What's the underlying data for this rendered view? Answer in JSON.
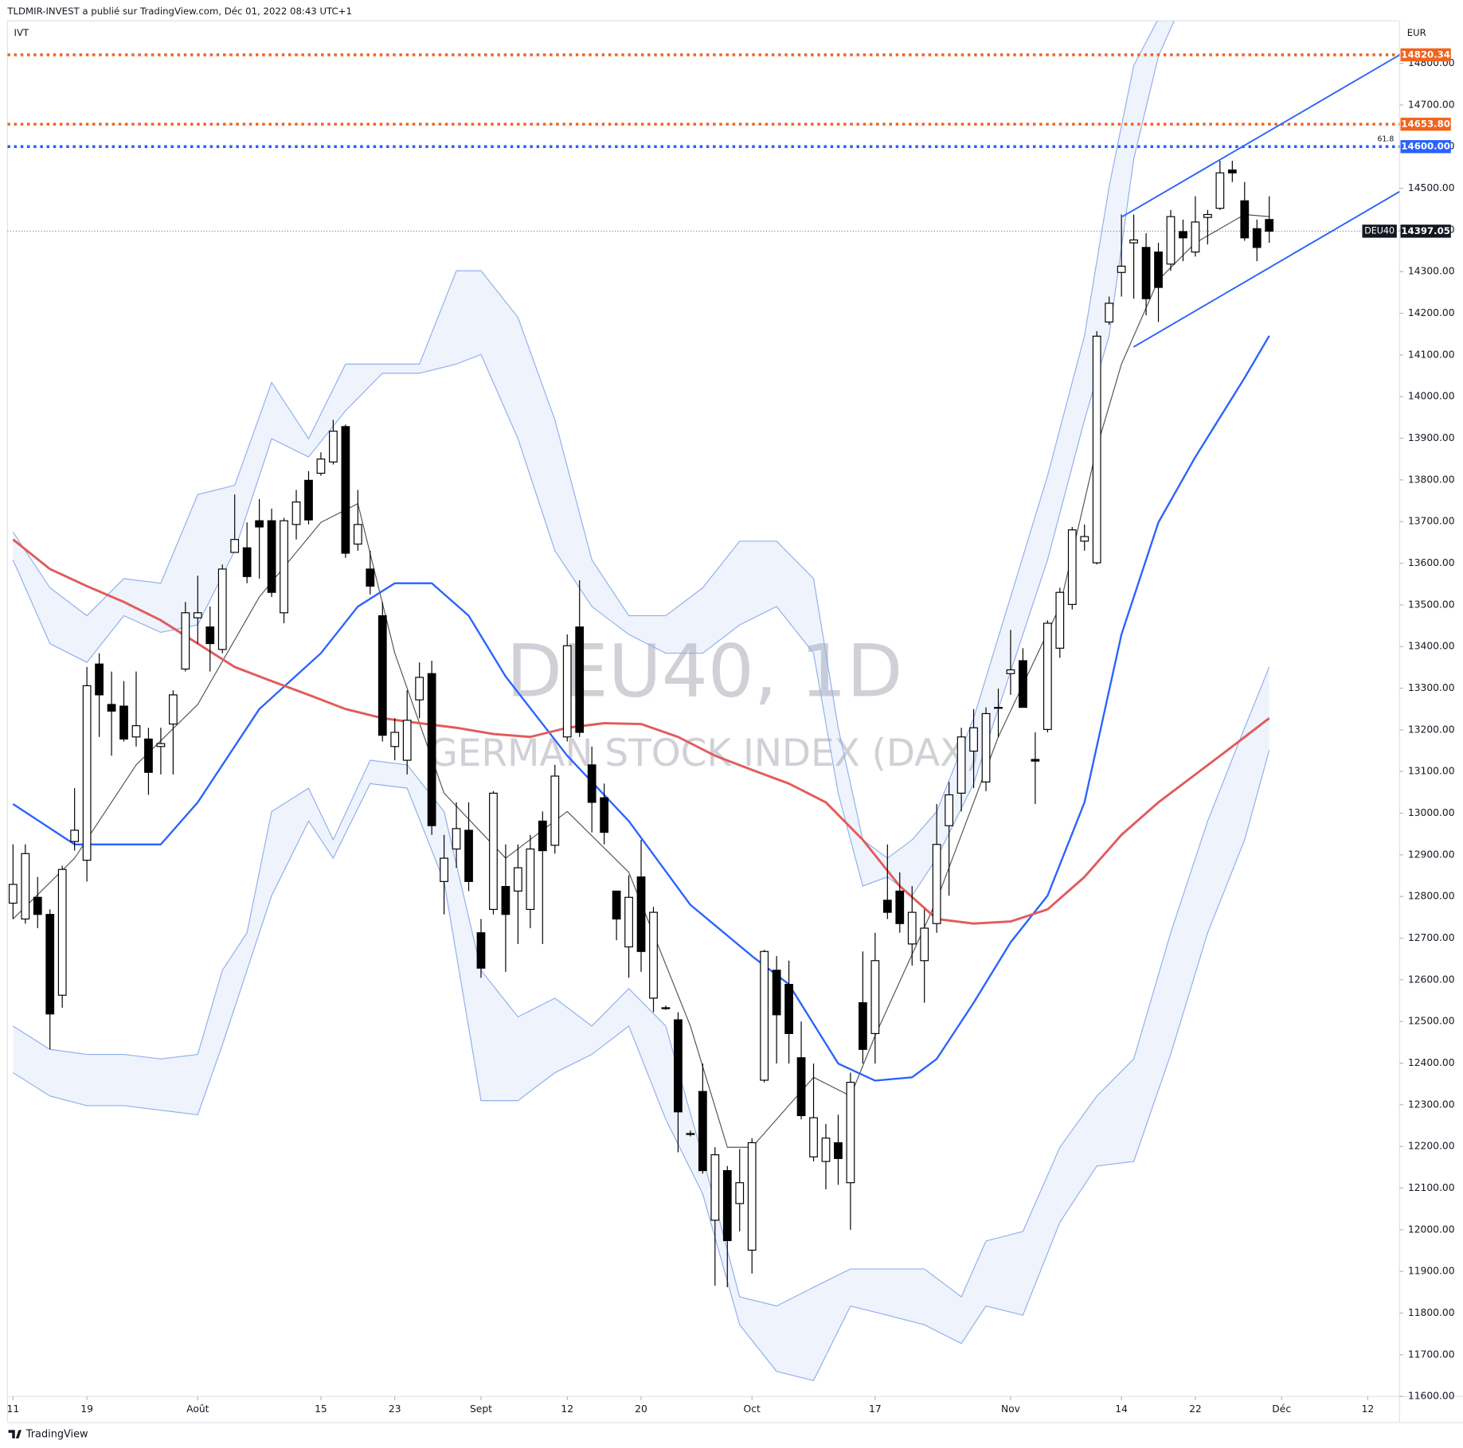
{
  "header": "TLDMIR-INVEST a publié sur TradingView.com, Déc 01, 2022 08:43 UTC+1",
  "footer": "TradingView",
  "chart_data": {
    "type": "candlestick",
    "title": "DEU40, 1D",
    "subtitle": "GERMAN STOCK INDEX (DAX)",
    "indicator_label": "IVT",
    "currency": "EUR",
    "categories": [
      "07-11",
      "07-12",
      "07-13",
      "07-14",
      "07-15",
      "07-18",
      "07-19",
      "07-20",
      "07-21",
      "07-22",
      "07-25",
      "07-26",
      "07-27",
      "07-28",
      "07-29",
      "08-01",
      "08-02",
      "08-03",
      "08-04",
      "08-05",
      "08-08",
      "08-09",
      "08-10",
      "08-11",
      "08-12",
      "08-15",
      "08-16",
      "08-17",
      "08-18",
      "08-19",
      "08-22",
      "08-23",
      "08-24",
      "08-25",
      "08-26",
      "08-29",
      "08-30",
      "08-31",
      "09-01",
      "09-02",
      "09-05",
      "09-06",
      "09-07",
      "09-08",
      "09-09",
      "09-12",
      "09-13",
      "09-14",
      "09-15",
      "09-16",
      "09-19",
      "09-20",
      "09-21",
      "09-22",
      "09-23",
      "09-26",
      "09-27",
      "09-28",
      "09-29",
      "09-30",
      "10-03",
      "10-04",
      "10-05",
      "10-06",
      "10-07",
      "10-10",
      "10-11",
      "10-12",
      "10-13",
      "10-14",
      "10-17",
      "10-18",
      "10-19",
      "10-20",
      "10-21",
      "10-24",
      "10-25",
      "10-26",
      "10-27",
      "10-28",
      "10-31",
      "11-01",
      "11-02",
      "11-03",
      "11-04",
      "11-07",
      "11-08",
      "11-09",
      "11-10",
      "11-11",
      "11-14",
      "11-15",
      "11-16",
      "11-17",
      "11-18",
      "11-21",
      "11-22",
      "11-23",
      "11-24",
      "11-25",
      "11-28",
      "11-29",
      "11-30"
    ],
    "open": [
      12784,
      12746,
      12798,
      12757,
      12563,
      12932,
      12887,
      13358,
      13261,
      13257,
      13183,
      13178,
      13160,
      13214,
      13346,
      13469,
      13447,
      13393,
      13626,
      13637,
      13702,
      13702,
      13481,
      13693,
      13799,
      13816,
      13843,
      13928,
      13646,
      13586,
      13474,
      13160,
      13127,
      13272,
      13335,
      12836,
      12914,
      12959,
      12713,
      12769,
      12824,
      12813,
      12769,
      12981,
      12923,
      13183,
      13447,
      13116,
      13037,
      12813,
      12679,
      12847,
      12556,
      12533,
      12504,
      12231,
      12332,
      12023,
      12142,
      12063,
      11951,
      12359,
      12623,
      12589,
      12413,
      12175,
      12164,
      12209,
      12113,
      12545,
      12471,
      12791,
      12813,
      12686,
      12646,
      12735,
      12970,
      13048,
      13149,
      13075,
      13252,
      13335,
      13366,
      13129,
      13201,
      13396,
      13501,
      13653,
      13601,
      14179,
      14298,
      14369,
      14358,
      14347,
      14318,
      14396,
      14347,
      14430,
      14452,
      14544,
      14470,
      14403,
      14425
    ],
    "high": [
      12925,
      12925,
      12847,
      12769,
      12874,
      13060,
      13351,
      13384,
      13340,
      13317,
      13340,
      13205,
      13205,
      13295,
      13507,
      13570,
      13496,
      13597,
      13765,
      13698,
      13754,
      13731,
      13709,
      13776,
      13821,
      13866,
      13944,
      13933,
      13776,
      13630,
      13507,
      13228,
      13295,
      13362,
      13366,
      12948,
      13026,
      13026,
      12746,
      13053,
      12925,
      12925,
      12948,
      13004,
      13116,
      13429,
      13559,
      13160,
      13071,
      12813,
      12851,
      12936,
      12775,
      12538,
      12522,
      12238,
      12399,
      12198,
      12153,
      12194,
      12220,
      12672,
      12657,
      12646,
      12500,
      12399,
      12254,
      12276,
      12377,
      12668,
      12713,
      12925,
      12858,
      12825,
      12769,
      13022,
      13075,
      13205,
      13250,
      13254,
      13299,
      13440,
      13396,
      13194,
      13463,
      13541,
      13687,
      13693,
      14157,
      14240,
      14437,
      14437,
      14392,
      14369,
      14448,
      14425,
      14481,
      14448,
      14566,
      14566,
      14515,
      14425,
      14481
    ],
    "low": [
      12746,
      12735,
      12724,
      12433,
      12533,
      12910,
      12836,
      13183,
      13138,
      13172,
      13160,
      13044,
      13093,
      13093,
      13340,
      13407,
      13340,
      13384,
      13630,
      13552,
      13563,
      13519,
      13456,
      13657,
      13693,
      13810,
      13837,
      13613,
      13630,
      13525,
      13172,
      13127,
      13093,
      13228,
      12948,
      12757,
      12869,
      12813,
      12605,
      12757,
      12619,
      12686,
      12724,
      12686,
      12903,
      13172,
      13183,
      12954,
      12925,
      12695,
      12605,
      12619,
      12522,
      12528,
      12186,
      12224,
      12135,
      11866,
      11862,
      11996,
      11895,
      12354,
      12399,
      12399,
      12265,
      12164,
      12097,
      12108,
      12000,
      12399,
      12399,
      12746,
      12713,
      12634,
      12545,
      12713,
      12802,
      13004,
      13060,
      13053,
      13183,
      13284,
      13254,
      13022,
      13194,
      13373,
      13489,
      13630,
      13597,
      14172,
      14240,
      14235,
      14195,
      14179,
      14302,
      14325,
      14336,
      14365,
      14448,
      14515,
      14374,
      14325,
      14369
    ],
    "close": [
      12829,
      12903,
      12757,
      12518,
      12865,
      12959,
      13306,
      13284,
      13245,
      13178,
      13210,
      13098,
      13167,
      13284,
      13481,
      13481,
      13407,
      13586,
      13657,
      13568,
      13687,
      13530,
      13702,
      13747,
      13704,
      13850,
      13917,
      13624,
      13693,
      13545,
      13187,
      13194,
      13223,
      13326,
      12970,
      12892,
      12963,
      12836,
      12628,
      13048,
      12757,
      12869,
      12914,
      12910,
      13089,
      13402,
      13194,
      13026,
      12954,
      12746,
      12798,
      12668,
      12762,
      12533,
      12283,
      12229,
      12142,
      12180,
      11974,
      12113,
      12209,
      12668,
      12516,
      12471,
      12274,
      12269,
      12220,
      12171,
      12354,
      12433,
      12646,
      12762,
      12735,
      12762,
      12724,
      12925,
      13044,
      13183,
      13205,
      13239,
      13254,
      13344,
      13254,
      13125,
      13456,
      13530,
      13680,
      13664,
      14145,
      14224,
      14313,
      14376,
      14235,
      14262,
      14432,
      14381,
      14419,
      14437,
      14537,
      14537,
      14381,
      14358,
      14397.05
    ],
    "up_color": "#ffffff",
    "down_color": "#000000",
    "wick_color": "#000000",
    "xlim": [
      -0.45,
      112.58
    ],
    "xticks": [
      {
        "value": 0,
        "label": "11"
      },
      {
        "value": 6,
        "label": "19"
      },
      {
        "value": 15,
        "label": "Août"
      },
      {
        "value": 25,
        "label": "15"
      },
      {
        "value": 31,
        "label": "23"
      },
      {
        "value": 38,
        "label": "Sept"
      },
      {
        "value": 45,
        "label": "12"
      },
      {
        "value": 51,
        "label": "20"
      },
      {
        "value": 60,
        "label": "Oct"
      },
      {
        "value": 70,
        "label": "17"
      },
      {
        "value": 81,
        "label": "Nov"
      },
      {
        "value": 90,
        "label": "14"
      },
      {
        "value": 96,
        "label": "22"
      },
      {
        "value": 103,
        "label": "Déc"
      },
      {
        "value": 110,
        "label": "12"
      }
    ],
    "ylim": [
      11600,
      14902
    ],
    "yticks": [
      {
        "value": 11600,
        "label": "11600.00"
      },
      {
        "value": 11700,
        "label": "11700.00"
      },
      {
        "value": 11800,
        "label": "11800.00"
      },
      {
        "value": 11900,
        "label": "11900.00"
      },
      {
        "value": 12000,
        "label": "12000.00"
      },
      {
        "value": 12100,
        "label": "12100.00"
      },
      {
        "value": 12200,
        "label": "12200.00"
      },
      {
        "value": 12300,
        "label": "12300.00"
      },
      {
        "value": 12400,
        "label": "12400.00"
      },
      {
        "value": 12500,
        "label": "12500.00"
      },
      {
        "value": 12600,
        "label": "12600.00"
      },
      {
        "value": 12700,
        "label": "12700.00"
      },
      {
        "value": 12800,
        "label": "12800.00"
      },
      {
        "value": 12900,
        "label": "12900.00"
      },
      {
        "value": 13000,
        "label": "13000.00"
      },
      {
        "value": 13100,
        "label": "13100.00"
      },
      {
        "value": 13200,
        "label": "13200.00"
      },
      {
        "value": 13300,
        "label": "13300.00"
      },
      {
        "value": 13400,
        "label": "13400.00"
      },
      {
        "value": 13500,
        "label": "13500.00"
      },
      {
        "value": 13600,
        "label": "13600.00"
      },
      {
        "value": 13700,
        "label": "13700.00"
      },
      {
        "value": 13800,
        "label": "13800.00"
      },
      {
        "value": 13900,
        "label": "13900.00"
      },
      {
        "value": 14000,
        "label": "14000.00"
      },
      {
        "value": 14100,
        "label": "14100.00"
      },
      {
        "value": 14200,
        "label": "14200.00"
      },
      {
        "value": 14300,
        "label": "14300.00"
      },
      {
        "value": 14400,
        "label": "14400.00"
      },
      {
        "value": 14500,
        "label": "14500.00"
      },
      {
        "value": 14600,
        "label": "14600.00"
      },
      {
        "value": 14700,
        "label": "14700.00"
      },
      {
        "value": 14800,
        "label": "14800.00"
      }
    ],
    "bands": [
      {
        "color": "#90b0ec",
        "x": [
          0,
          3,
          6,
          9,
          12,
          15,
          18,
          21,
          24,
          27,
          30,
          33,
          36,
          38,
          41,
          44,
          47,
          50,
          53,
          56,
          59,
          62,
          65,
          67,
          69,
          71,
          73,
          75,
          78,
          81,
          84,
          87,
          89,
          91,
          93,
          95
        ],
        "upper": [
          13675,
          13541,
          13474,
          13563,
          13552,
          13765,
          13787,
          14034,
          13899,
          14078,
          14078,
          14078,
          14302,
          14302,
          14190,
          13944,
          13608,
          13474,
          13474,
          13541,
          13653,
          13653,
          13563,
          13205,
          12936,
          12892,
          12936,
          13004,
          13228,
          13519,
          13810,
          14146,
          14504,
          14795,
          14907,
          15040
        ],
        "lower": [
          13608,
          13407,
          13362,
          13474,
          13434,
          13452,
          13630,
          13899,
          13855,
          13966,
          14056,
          14056,
          14078,
          14101,
          13899,
          13630,
          13496,
          13429,
          13384,
          13384,
          13452,
          13496,
          13384,
          13048,
          12825,
          12847,
          12802,
          12892,
          13071,
          13340,
          13608,
          13944,
          14146,
          14571,
          14817,
          14950
        ]
      },
      {
        "color": "#90b0ec",
        "x": [
          0,
          3,
          6,
          9,
          12,
          15,
          17,
          19,
          21,
          24,
          26,
          29,
          32,
          35,
          38,
          41,
          44,
          47,
          50,
          53,
          56,
          59,
          62,
          65,
          68,
          71,
          74,
          77,
          79,
          82,
          85,
          88,
          91,
          94,
          97,
          100,
          102
        ],
        "upper": [
          12489,
          12433,
          12421,
          12421,
          12410,
          12421,
          12623,
          12713,
          13004,
          13060,
          12936,
          13127,
          13116,
          13004,
          12623,
          12511,
          12556,
          12489,
          12579,
          12489,
          12175,
          11839,
          11817,
          11862,
          11906,
          11906,
          11906,
          11839,
          11973,
          11996,
          12198,
          12321,
          12410,
          12713,
          12981,
          13205,
          13351
        ],
        "lower": [
          12377,
          12321,
          12298,
          12298,
          12287,
          12276,
          12444,
          12623,
          12802,
          12981,
          12892,
          13071,
          13060,
          12836,
          12310,
          12310,
          12377,
          12421,
          12489,
          12265,
          12086,
          11772,
          11660,
          11638,
          11817,
          11795,
          11772,
          11727,
          11817,
          11795,
          12018,
          12153,
          12164,
          12421,
          12713,
          12936,
          13151
        ]
      }
    ],
    "overlays": [
      {
        "color": "#555555",
        "line_width": 1,
        "x": [
          0,
          5,
          10,
          15,
          20,
          25,
          28,
          31,
          35,
          40,
          45,
          50,
          55,
          58,
          60,
          65,
          68,
          70,
          75,
          80,
          85,
          88,
          90,
          93,
          96,
          100,
          102
        ],
        "values": [
          12746,
          12892,
          13116,
          13261,
          13519,
          13698,
          13743,
          13384,
          13048,
          12892,
          13004,
          12858,
          12489,
          12198,
          12198,
          12366,
          12321,
          12466,
          12791,
          13183,
          13496,
          13877,
          14078,
          14280,
          14369,
          14437,
          14432
        ]
      },
      {
        "color": "#2962ff",
        "line_width": 2,
        "x": [
          0,
          5,
          8,
          12,
          15,
          20,
          25,
          28,
          31,
          34,
          37,
          40,
          45,
          50,
          55,
          60,
          63,
          67,
          70,
          73,
          75,
          78,
          81,
          84,
          87,
          90,
          93,
          96,
          100,
          102
        ],
        "values": [
          13022,
          12925,
          12925,
          12925,
          13026,
          13250,
          13384,
          13496,
          13552,
          13552,
          13474,
          13328,
          13138,
          12981,
          12780,
          12657,
          12589,
          12399,
          12358,
          12366,
          12410,
          12545,
          12690,
          12802,
          13026,
          13429,
          13698,
          13855,
          14045,
          14146
        ]
      },
      {
        "color": "#e25b5b",
        "line_width": 2.5,
        "x": [
          0,
          3,
          6,
          9,
          12,
          15,
          18,
          21,
          24,
          27,
          30,
          33,
          36,
          39,
          42,
          45,
          48,
          51,
          54,
          57,
          60,
          63,
          66,
          69,
          72,
          75,
          78,
          81,
          84,
          87,
          90,
          93,
          96,
          99,
          102
        ],
        "values": [
          13657,
          13586,
          13545,
          13507,
          13463,
          13407,
          13351,
          13317,
          13284,
          13250,
          13228,
          13216,
          13205,
          13190,
          13183,
          13205,
          13216,
          13214,
          13183,
          13138,
          13104,
          13071,
          13026,
          12936,
          12825,
          12746,
          12735,
          12740,
          12769,
          12847,
          12948,
          13026,
          13093,
          13160,
          13228
        ]
      }
    ],
    "trendlines": [
      {
        "color": "#2962ff",
        "x": [
          90.08,
          112.58
        ],
        "values": [
          14432,
          14820
        ]
      },
      {
        "color": "#2962ff",
        "x": [
          90.98,
          112.58
        ],
        "values": [
          14119,
          14492
        ]
      }
    ],
    "levels": [
      {
        "value": 14820.34,
        "color": "#f0641e"
      },
      {
        "value": 14653.8,
        "label": "14653.80",
        "color": "#f0641e"
      },
      {
        "value": 14600,
        "label": "14600.00",
        "color": "#2962ff",
        "annotation": "61.8"
      }
    ],
    "last_price": {
      "value": 14397.05,
      "symbol": "DEU40",
      "color": "#131722"
    }
  }
}
